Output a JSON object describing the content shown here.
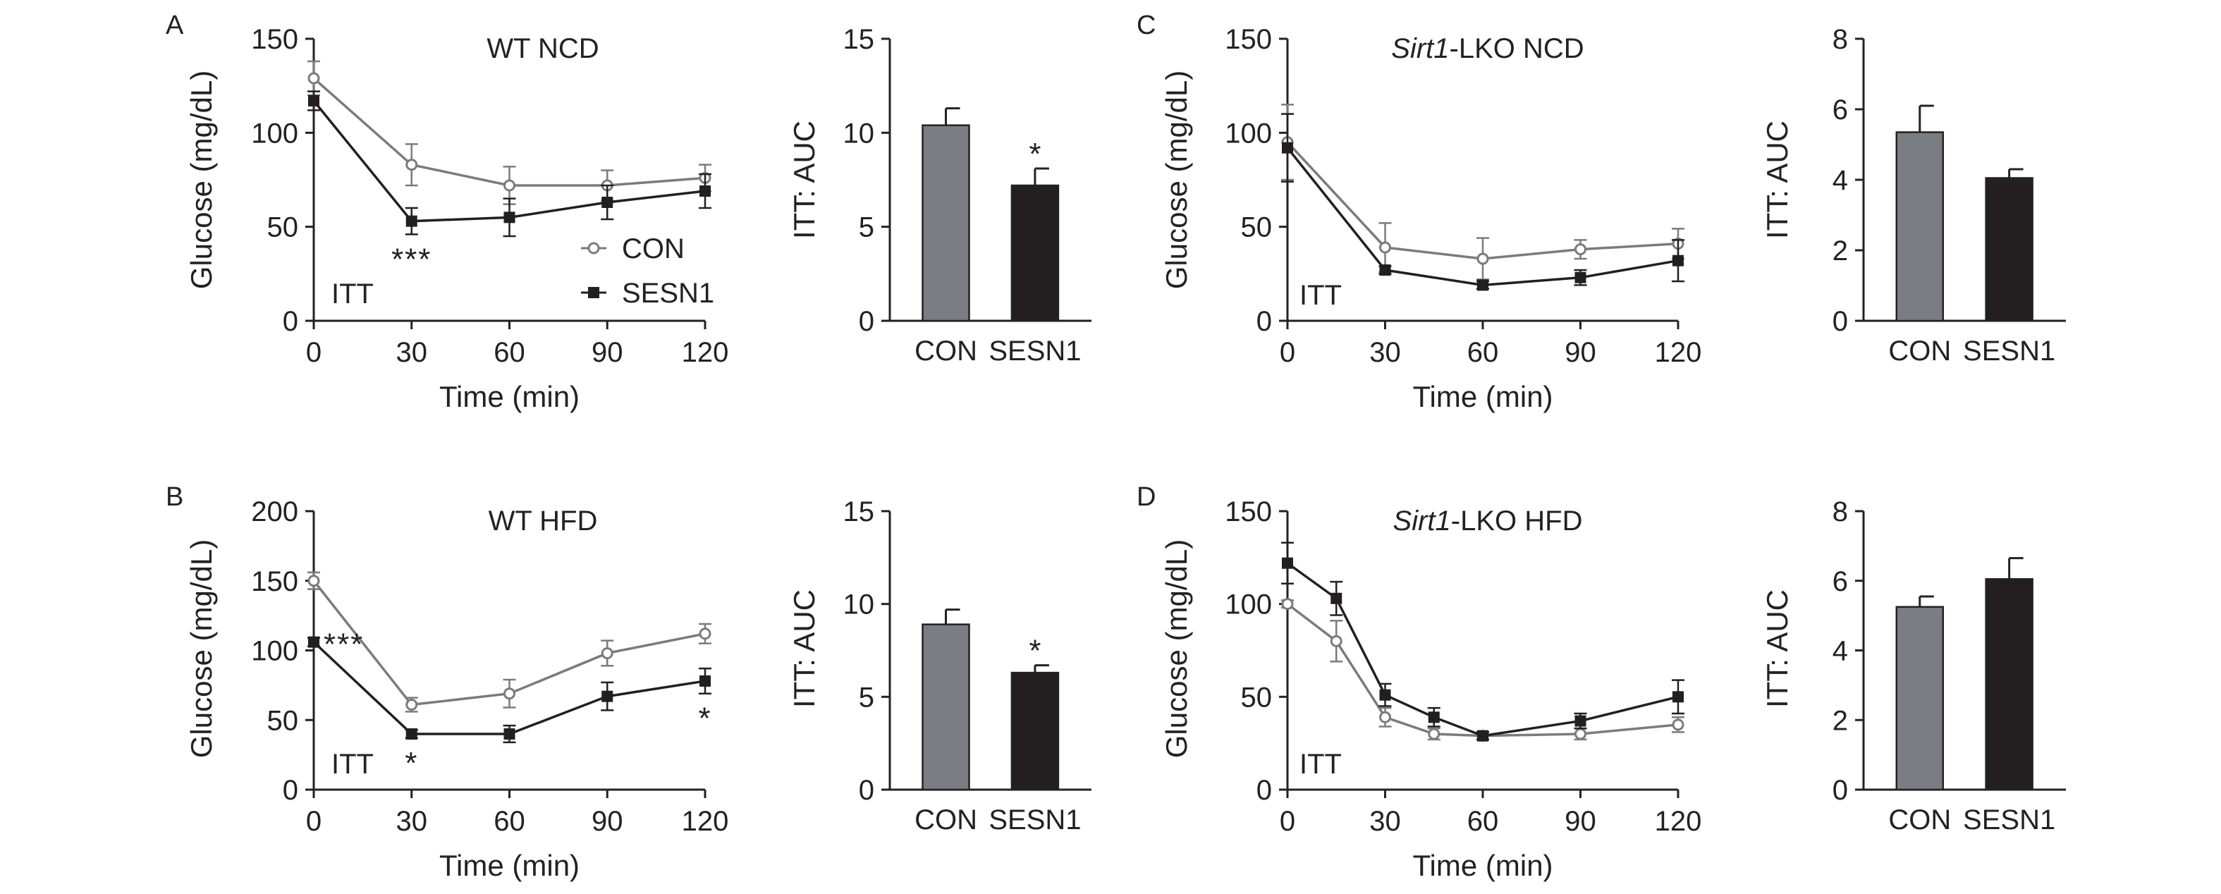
{
  "colors": {
    "con": "#7b7b7f",
    "sesn1": "#231f20",
    "con_bar": "#7b7d84",
    "sesn1_bar": "#231f20"
  },
  "chart_data": [
    {
      "panel": "A",
      "type": "line",
      "title": "WT NCD",
      "xlabel": "Time (min)",
      "ylabel": "Glucose (mg/dL)",
      "annotation": "ITT",
      "xlim": [
        0,
        120
      ],
      "ylim": [
        0,
        150
      ],
      "xticks": [
        0,
        30,
        60,
        90,
        120
      ],
      "yticks": [
        0,
        50,
        100,
        150
      ],
      "legend": {
        "placement": "lower-right",
        "entries": [
          "CON",
          "SESN1"
        ]
      },
      "series": [
        {
          "name": "CON",
          "x": [
            0,
            30,
            60,
            90,
            120
          ],
          "y": [
            129,
            83,
            72,
            72,
            76
          ],
          "err": [
            9,
            11,
            10,
            8,
            7
          ]
        },
        {
          "name": "SESN1",
          "x": [
            0,
            30,
            60,
            90,
            120
          ],
          "y": [
            117,
            53,
            55,
            63,
            69
          ],
          "err": [
            5,
            7,
            10,
            9,
            9
          ]
        }
      ],
      "significance": [
        {
          "x": 30,
          "label": "***"
        }
      ]
    },
    {
      "panel": "A",
      "type": "bar",
      "ylabel": "ITT: AUC",
      "categories": [
        "CON",
        "SESN1"
      ],
      "values": [
        10.4,
        7.2
      ],
      "err": [
        0.9,
        0.9
      ],
      "ylim": [
        0,
        15
      ],
      "yticks": [
        0,
        5,
        10,
        15
      ],
      "significance": [
        {
          "category": "SESN1",
          "label": "*"
        }
      ]
    },
    {
      "panel": "B",
      "type": "line",
      "title": "WT HFD",
      "xlabel": "Time (min)",
      "ylabel": "Glucose (mg/dL)",
      "annotation": "ITT",
      "xlim": [
        0,
        120
      ],
      "ylim": [
        0,
        200
      ],
      "xticks": [
        0,
        30,
        60,
        90,
        120
      ],
      "yticks": [
        0,
        50,
        100,
        150,
        200
      ],
      "series": [
        {
          "name": "CON",
          "x": [
            0,
            30,
            60,
            90,
            120
          ],
          "y": [
            150,
            61,
            69,
            98,
            112
          ],
          "err": [
            6,
            5,
            10,
            9,
            7
          ]
        },
        {
          "name": "SESN1",
          "x": [
            0,
            30,
            60,
            90,
            120
          ],
          "y": [
            106,
            40,
            40,
            67,
            78
          ],
          "err": [
            3,
            3,
            6,
            10,
            9
          ]
        }
      ],
      "significance": [
        {
          "x": 0,
          "label": "***"
        },
        {
          "x": 30,
          "label": "*"
        },
        {
          "x": 120,
          "label": "*"
        }
      ]
    },
    {
      "panel": "B",
      "type": "bar",
      "ylabel": "ITT: AUC",
      "categories": [
        "CON",
        "SESN1"
      ],
      "values": [
        8.9,
        6.3
      ],
      "err": [
        0.8,
        0.4
      ],
      "ylim": [
        0,
        15
      ],
      "yticks": [
        0,
        5,
        10,
        15
      ],
      "significance": [
        {
          "category": "SESN1",
          "label": "*"
        }
      ]
    },
    {
      "panel": "C",
      "type": "line",
      "title_italic": "Sirt1",
      "title": "-LKO NCD",
      "xlabel": "Time (min)",
      "ylabel": "Glucose (mg/dL)",
      "annotation": "ITT",
      "xlim": [
        0,
        120
      ],
      "ylim": [
        0,
        150
      ],
      "xticks": [
        0,
        30,
        60,
        90,
        120
      ],
      "yticks": [
        0,
        50,
        100,
        150
      ],
      "series": [
        {
          "name": "CON",
          "x": [
            0,
            30,
            60,
            90,
            120
          ],
          "y": [
            95,
            39,
            33,
            38,
            41
          ],
          "err": [
            20,
            13,
            11,
            5,
            8
          ]
        },
        {
          "name": "SESN1",
          "x": [
            0,
            30,
            60,
            90,
            120
          ],
          "y": [
            92,
            27,
            19,
            23,
            32
          ],
          "err": [
            18,
            2,
            2,
            4,
            11
          ]
        }
      ]
    },
    {
      "panel": "C",
      "type": "bar",
      "ylabel": "ITT: AUC",
      "categories": [
        "CON",
        "SESN1"
      ],
      "values": [
        5.35,
        4.05
      ],
      "err": [
        0.75,
        0.25
      ],
      "ylim": [
        0,
        8
      ],
      "yticks": [
        0,
        2,
        4,
        6,
        8
      ]
    },
    {
      "panel": "D",
      "type": "line",
      "title_italic": "Sirt1",
      "title": "-LKO HFD",
      "xlabel": "Time (min)",
      "ylabel": "Glucose (mg/dL)",
      "annotation": "ITT",
      "xlim": [
        0,
        120
      ],
      "ylim": [
        0,
        150
      ],
      "xticks": [
        0,
        30,
        60,
        90,
        120
      ],
      "yticks": [
        0,
        50,
        100,
        150
      ],
      "series": [
        {
          "name": "CON",
          "x": [
            0,
            15,
            30,
            45,
            60,
            90,
            120
          ],
          "y": [
            100,
            80,
            39,
            30,
            29,
            30,
            35
          ],
          "err": [
            2,
            11,
            5,
            3,
            2,
            3,
            4
          ]
        },
        {
          "name": "SESN1",
          "x": [
            0,
            15,
            30,
            45,
            60,
            90,
            120
          ],
          "y": [
            122,
            103,
            51,
            39,
            29,
            37,
            50
          ],
          "err": [
            11,
            9,
            6,
            5,
            2,
            4,
            9
          ]
        }
      ]
    },
    {
      "panel": "D",
      "type": "bar",
      "ylabel": "ITT: AUC",
      "categories": [
        "CON",
        "SESN1"
      ],
      "values": [
        5.25,
        6.05
      ],
      "err": [
        0.3,
        0.6
      ],
      "ylim": [
        0,
        8
      ],
      "yticks": [
        0,
        2,
        4,
        6,
        8
      ]
    }
  ]
}
